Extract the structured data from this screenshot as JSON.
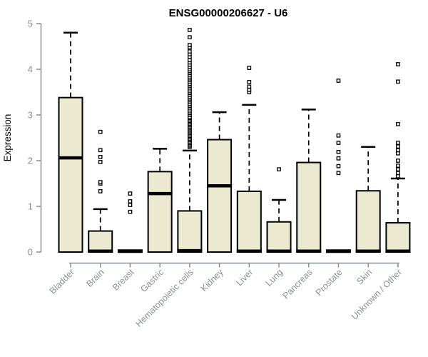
{
  "chart_data": {
    "type": "boxplot",
    "title": "ENSG00000206627 - U6",
    "ylabel": "Expression",
    "xlabel": "",
    "ylim": [
      0,
      5
    ],
    "yticks": [
      0,
      1,
      2,
      3,
      4,
      5
    ],
    "grid": false,
    "legend": "none",
    "box_fill": "#ece9d1",
    "box_stroke": "#000000",
    "axis_color": "#8b9097",
    "categories": [
      "Bladder",
      "Brain",
      "Breast",
      "Gastric",
      "Hematopoietic cells",
      "Kidney",
      "Liver",
      "Lung",
      "Pancreas",
      "Prostate",
      "Skin",
      "Unknown / Other"
    ],
    "series": [
      {
        "category": "Bladder",
        "whisker_low": 0,
        "q1": 0,
        "median": 2.06,
        "q3": 3.38,
        "whisker_high": 4.8,
        "outliers": []
      },
      {
        "category": "Brain",
        "whisker_low": 0,
        "q1": 0,
        "median": 0.02,
        "q3": 0.46,
        "whisker_high": 0.94,
        "outliers": [
          1.33,
          1.5,
          1.53,
          1.97,
          2.08,
          2.23,
          2.63
        ]
      },
      {
        "category": "Breast",
        "whisker_low": 0,
        "q1": 0,
        "median": 0.02,
        "q3": 0.02,
        "whisker_high": 0.02,
        "outliers": [
          0.88,
          1.03,
          1.11,
          1.28
        ]
      },
      {
        "category": "Gastric",
        "whisker_low": 0,
        "q1": 0,
        "median": 1.28,
        "q3": 1.76,
        "whisker_high": 2.26,
        "outliers": []
      },
      {
        "category": "Hematopoietic cells",
        "whisker_low": 0,
        "q1": 0,
        "median": 0.03,
        "q3": 0.9,
        "whisker_high": 2.22,
        "outliers": [
          2.3,
          2.33,
          2.36,
          2.39,
          2.42,
          2.45,
          2.48,
          2.51,
          2.54,
          2.57,
          2.6,
          2.63,
          2.66,
          2.69,
          2.72,
          2.75,
          2.78,
          2.81,
          2.84,
          2.87,
          2.9,
          2.93,
          2.96,
          3.0,
          3.04,
          3.08,
          3.12,
          3.16,
          3.2,
          3.24,
          3.28,
          3.32,
          3.36,
          3.4,
          3.44,
          3.48,
          3.52,
          3.56,
          3.6,
          3.64,
          3.68,
          3.72,
          3.76,
          3.8,
          3.84,
          3.88,
          3.92,
          3.96,
          4.0,
          4.05,
          4.1,
          4.15,
          4.2,
          4.27,
          4.33,
          4.39,
          4.48,
          4.53,
          4.7,
          4.86
        ]
      },
      {
        "category": "Kidney",
        "whisker_low": 0,
        "q1": 0,
        "median": 1.45,
        "q3": 2.46,
        "whisker_high": 3.06,
        "outliers": []
      },
      {
        "category": "Liver",
        "whisker_low": 0,
        "q1": 0,
        "median": 0.02,
        "q3": 1.33,
        "whisker_high": 3.22,
        "outliers": [
          3.5,
          3.55,
          3.62,
          3.72,
          4.03
        ]
      },
      {
        "category": "Lung",
        "whisker_low": 0,
        "q1": 0,
        "median": 0.02,
        "q3": 0.66,
        "whisker_high": 1.14,
        "outliers": [
          1.81
        ]
      },
      {
        "category": "Pancreas",
        "whisker_low": 0,
        "q1": 0,
        "median": 0.02,
        "q3": 1.96,
        "whisker_high": 3.12,
        "outliers": []
      },
      {
        "category": "Prostate",
        "whisker_low": 0,
        "q1": 0,
        "median": 0.02,
        "q3": 0.02,
        "whisker_high": 0.02,
        "outliers": [
          1.73,
          1.88,
          2.05,
          2.19,
          2.39,
          2.55,
          3.75
        ]
      },
      {
        "category": "Skin",
        "whisker_low": 0,
        "q1": 0,
        "median": 0.02,
        "q3": 1.34,
        "whisker_high": 2.3,
        "outliers": []
      },
      {
        "category": "Unknown / Other",
        "whisker_low": 0,
        "q1": 0,
        "median": 0.02,
        "q3": 0.64,
        "whisker_high": 1.61,
        "outliers": [
          1.66,
          1.73,
          1.81,
          1.89,
          2.0,
          2.16,
          2.23,
          2.31,
          2.39,
          2.8,
          3.73,
          4.11
        ]
      }
    ]
  }
}
